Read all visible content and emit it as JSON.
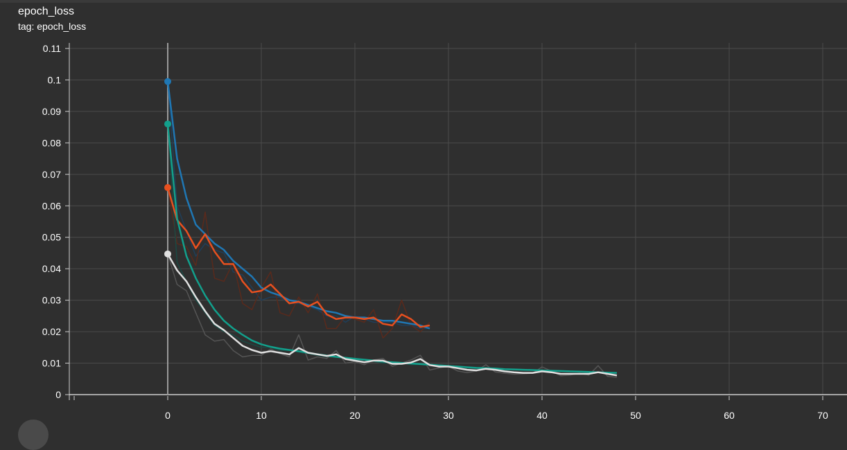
{
  "card": {
    "title": "epoch_loss",
    "tag": "tag: epoch_loss"
  },
  "colors": {
    "background": "#2f2f2f",
    "grid": "#4b4b4b",
    "axis": "#cfcfcf"
  },
  "chart_data": {
    "type": "line",
    "title": "epoch_loss",
    "xlabel": "",
    "ylabel": "",
    "xlim": [
      -10,
      72
    ],
    "ylim": [
      0,
      0.11
    ],
    "x_ticks": [
      0,
      10,
      20,
      30,
      40,
      50,
      60,
      70
    ],
    "y_ticks": [
      0,
      0.01,
      0.02,
      0.03,
      0.04,
      0.05,
      0.06,
      0.07,
      0.08,
      0.09,
      0.1,
      0.11
    ],
    "y_tick_labels": [
      "0",
      "0.01",
      "0.02",
      "0.03",
      "0.04",
      "0.05",
      "0.06",
      "0.07",
      "0.08",
      "0.09",
      "0.1",
      "0.11"
    ],
    "grid": true,
    "series": [
      {
        "color": "#1f77b4",
        "raw_color": "#1f3f5a",
        "smoothed": [
          0.0995,
          0.075,
          0.0625,
          0.054,
          0.051,
          0.048,
          0.046,
          0.0425,
          0.04,
          0.0375,
          0.034,
          0.0325,
          0.0315,
          0.03,
          0.0295,
          0.0285,
          0.0275,
          0.0265,
          0.026,
          0.025,
          0.0245,
          0.0245,
          0.024,
          0.0235,
          0.0235,
          0.023,
          0.0225,
          0.022,
          0.021
        ],
        "raw": [
          0.0995,
          0.06,
          0.052,
          0.044,
          0.048,
          0.046,
          0.045,
          0.039,
          0.038,
          0.034,
          0.03,
          0.031,
          0.031,
          0.029,
          0.029,
          0.028,
          0.027,
          0.025,
          0.025,
          0.023,
          0.025,
          0.024,
          0.023,
          0.023,
          0.023,
          0.022,
          0.022,
          0.021,
          0.021
        ]
      },
      {
        "color": "#e8501f",
        "raw_color": "#5a2a1c",
        "smoothed": [
          0.0658,
          0.0555,
          0.052,
          0.0465,
          0.051,
          0.0455,
          0.0415,
          0.0415,
          0.036,
          0.0325,
          0.033,
          0.035,
          0.032,
          0.029,
          0.0295,
          0.028,
          0.0295,
          0.0255,
          0.024,
          0.0245,
          0.0245,
          0.024,
          0.0245,
          0.0225,
          0.022,
          0.0255,
          0.024,
          0.0215,
          0.022
        ],
        "raw": [
          0.0658,
          0.048,
          0.047,
          0.041,
          0.058,
          0.037,
          0.036,
          0.042,
          0.029,
          0.027,
          0.034,
          0.039,
          0.026,
          0.025,
          0.031,
          0.026,
          0.032,
          0.021,
          0.021,
          0.025,
          0.024,
          0.023,
          0.027,
          0.018,
          0.021,
          0.03,
          0.022,
          0.02,
          0.023
        ]
      },
      {
        "color": "#12a08c",
        "raw_color": "#1a4a44",
        "smoothed": [
          0.086,
          0.056,
          0.044,
          0.037,
          0.0315,
          0.027,
          0.0235,
          0.021,
          0.019,
          0.0172,
          0.016,
          0.0152,
          0.0146,
          0.0142,
          0.0138,
          0.0133,
          0.0128,
          0.0124,
          0.012,
          0.0117,
          0.0114,
          0.0111,
          0.0108,
          0.0105,
          0.0103,
          0.0101,
          0.0099,
          0.0097,
          0.0095,
          0.0093,
          0.0091,
          0.0089,
          0.0087,
          0.0085,
          0.0084,
          0.0083,
          0.0081,
          0.008,
          0.0079,
          0.0078,
          0.0077,
          0.0076,
          0.0075,
          0.0074,
          0.0073,
          0.0072,
          0.0071,
          0.007,
          0.0069
        ],
        "raw": [
          0.086,
          0.042,
          0.036,
          0.03,
          0.026,
          0.022,
          0.02,
          0.019,
          0.017,
          0.016,
          0.015,
          0.015,
          0.014,
          0.014,
          0.0135,
          0.013,
          0.0125,
          0.012,
          0.012,
          0.0115,
          0.011,
          0.011,
          0.0105,
          0.01,
          0.01,
          0.01,
          0.0095,
          0.0095,
          0.0093,
          0.0092,
          0.009,
          0.0088,
          0.0086,
          0.0084,
          0.0083,
          0.0082,
          0.008,
          0.0079,
          0.0078,
          0.0077,
          0.0076,
          0.0075,
          0.0074,
          0.0073,
          0.0072,
          0.0071,
          0.007,
          0.0069,
          0.0068
        ]
      },
      {
        "color": "#e0e0e0",
        "raw_color": "#555555",
        "smoothed": [
          0.0447,
          0.0395,
          0.036,
          0.031,
          0.0265,
          0.0225,
          0.0205,
          0.018,
          0.0155,
          0.0142,
          0.0133,
          0.0138,
          0.0133,
          0.0128,
          0.0148,
          0.0133,
          0.0128,
          0.0123,
          0.0128,
          0.0113,
          0.0108,
          0.0103,
          0.0108,
          0.0108,
          0.0098,
          0.0098,
          0.0102,
          0.0113,
          0.0094,
          0.0089,
          0.0089,
          0.0084,
          0.0079,
          0.0077,
          0.0082,
          0.0079,
          0.0074,
          0.0071,
          0.0069,
          0.0069,
          0.0074,
          0.0071,
          0.0066,
          0.0066,
          0.0066,
          0.0066,
          0.0071,
          0.0066,
          0.0061
        ],
        "raw": [
          0.0447,
          0.035,
          0.033,
          0.026,
          0.019,
          0.017,
          0.0175,
          0.014,
          0.012,
          0.0125,
          0.0125,
          0.0145,
          0.013,
          0.012,
          0.019,
          0.011,
          0.012,
          0.0115,
          0.014,
          0.01,
          0.0105,
          0.0095,
          0.011,
          0.0115,
          0.009,
          0.01,
          0.011,
          0.0125,
          0.0078,
          0.0085,
          0.009,
          0.0075,
          0.007,
          0.0075,
          0.0095,
          0.0072,
          0.0068,
          0.0065,
          0.0066,
          0.0068,
          0.0088,
          0.0075,
          0.006,
          0.0062,
          0.0068,
          0.0062,
          0.0092,
          0.0058,
          0.0055
        ]
      }
    ]
  }
}
